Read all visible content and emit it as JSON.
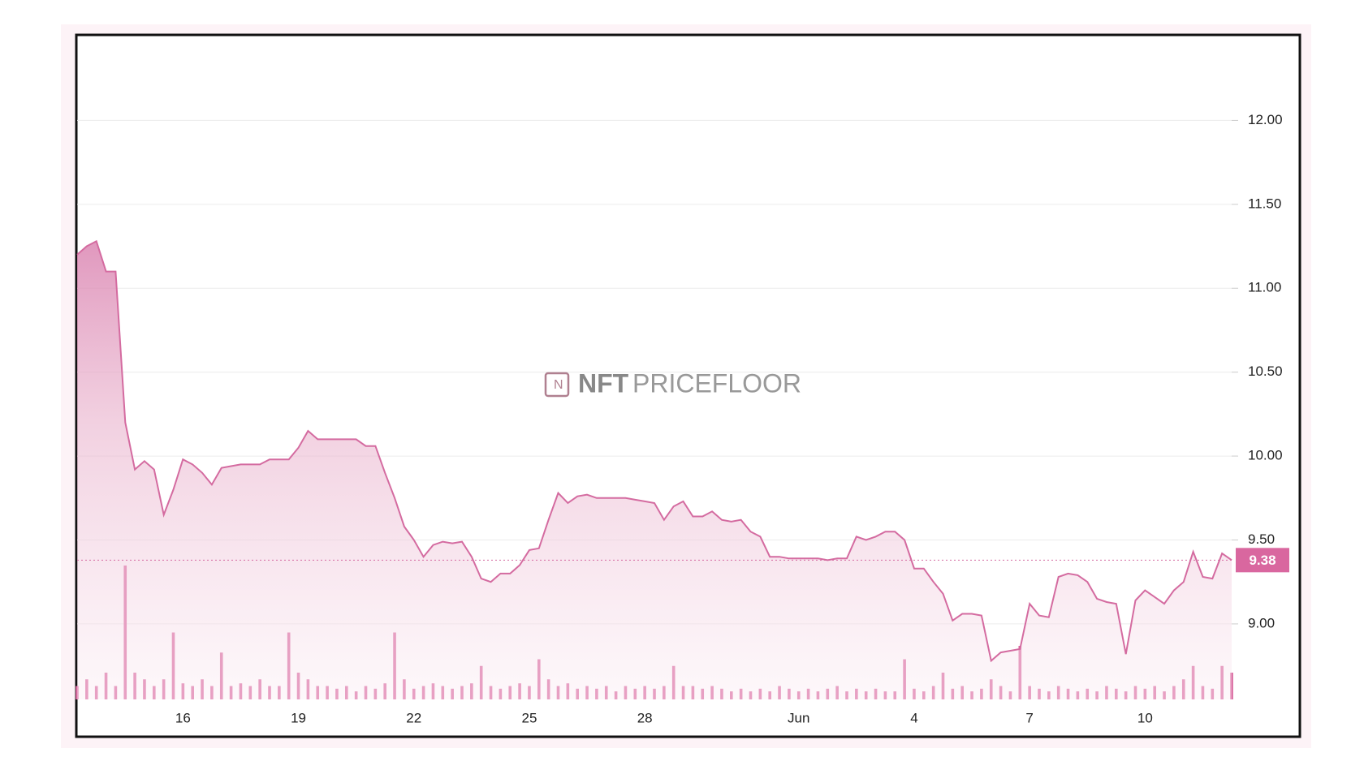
{
  "chart_data": {
    "type": "area",
    "categories": [
      null,
      null,
      null,
      null,
      null,
      null,
      null,
      null,
      null,
      null,
      null,
      "16",
      null,
      null,
      null,
      null,
      null,
      null,
      null,
      null,
      null,
      null,
      null,
      "19",
      null,
      null,
      null,
      null,
      null,
      null,
      null,
      null,
      null,
      null,
      null,
      "22",
      null,
      null,
      null,
      null,
      null,
      null,
      null,
      null,
      null,
      null,
      null,
      "25",
      null,
      null,
      null,
      null,
      null,
      null,
      null,
      null,
      null,
      null,
      null,
      "28",
      null,
      null,
      null,
      null,
      null,
      null,
      null,
      null,
      null,
      null,
      null,
      null,
      null,
      null,
      null,
      "Jun",
      null,
      null,
      null,
      null,
      null,
      null,
      null,
      null,
      null,
      null,
      null,
      "4",
      null,
      null,
      null,
      null,
      null,
      null,
      null,
      null,
      null,
      null,
      null,
      "7",
      null,
      null,
      null,
      null,
      null,
      null,
      null,
      null,
      null,
      null,
      null,
      "10",
      null,
      null,
      null,
      null,
      null,
      null,
      null,
      null,
      null
    ],
    "values": [
      11.2,
      11.25,
      11.28,
      11.1,
      11.1,
      10.2,
      9.92,
      9.97,
      9.92,
      9.65,
      9.8,
      9.98,
      9.95,
      9.9,
      9.83,
      9.93,
      9.94,
      9.95,
      9.95,
      9.95,
      9.98,
      9.98,
      9.98,
      10.05,
      10.15,
      10.1,
      10.1,
      10.1,
      10.1,
      10.1,
      10.06,
      10.06,
      9.9,
      9.75,
      9.58,
      9.5,
      9.4,
      9.47,
      9.49,
      9.48,
      9.49,
      9.4,
      9.27,
      9.25,
      9.3,
      9.3,
      9.35,
      9.44,
      9.45,
      9.62,
      9.78,
      9.72,
      9.76,
      9.77,
      9.75,
      9.75,
      9.75,
      9.75,
      9.74,
      9.73,
      9.72,
      9.62,
      9.7,
      9.73,
      9.64,
      9.64,
      9.67,
      9.62,
      9.61,
      9.62,
      9.55,
      9.52,
      9.4,
      9.4,
      9.39,
      9.39,
      9.39,
      9.39,
      9.38,
      9.39,
      9.39,
      9.52,
      9.5,
      9.52,
      9.55,
      9.55,
      9.5,
      9.33,
      9.33,
      9.25,
      9.18,
      9.02,
      9.06,
      9.06,
      9.05,
      8.78,
      8.83,
      8.84,
      8.85,
      9.12,
      9.05,
      9.04,
      9.28,
      9.3,
      9.29,
      9.25,
      9.15,
      9.13,
      9.12,
      8.82,
      9.14,
      9.2,
      9.16,
      9.12,
      9.2,
      9.25,
      9.43,
      9.28,
      9.27,
      9.42,
      9.38
    ],
    "color": "#d46ba0",
    "volume": {
      "color": "#d9679f",
      "values": [
        1,
        1.5,
        1,
        2,
        1,
        10,
        2,
        1.5,
        1,
        1.5,
        5,
        1.2,
        1,
        1.5,
        1,
        3.5,
        1,
        1.2,
        1,
        1.5,
        1,
        1,
        5,
        2,
        1.5,
        1,
        1,
        0.8,
        1,
        0.6,
        1,
        0.8,
        1.2,
        5,
        1.5,
        0.8,
        1,
        1.2,
        1,
        0.8,
        1,
        1.2,
        2.5,
        1,
        0.8,
        1,
        1.2,
        1,
        3,
        1.5,
        1,
        1.2,
        0.8,
        1,
        0.8,
        1,
        0.6,
        1,
        0.8,
        1,
        0.8,
        1,
        2.5,
        1,
        1,
        0.8,
        1,
        0.8,
        0.6,
        0.8,
        0.6,
        0.8,
        0.6,
        1,
        0.8,
        0.6,
        0.8,
        0.6,
        0.8,
        1,
        0.6,
        0.8,
        0.6,
        0.8,
        0.6,
        0.6,
        3,
        0.8,
        0.6,
        1,
        2,
        0.8,
        1,
        0.6,
        0.8,
        1.5,
        1,
        0.6,
        4,
        1,
        0.8,
        0.6,
        1,
        0.8,
        0.6,
        0.8,
        0.6,
        1,
        0.8,
        0.6,
        1,
        0.8,
        1,
        0.6,
        1,
        1.5,
        2.5,
        1,
        0.8,
        2.5,
        2
      ]
    },
    "ylim": [
      8.55,
      12.5
    ],
    "yticks": [
      {
        "value": 9,
        "label": "9.00"
      },
      {
        "value": 9.5,
        "label": "9.50"
      },
      {
        "value": 10,
        "label": "10.00"
      },
      {
        "value": 10.5,
        "label": "10.50"
      },
      {
        "value": 11,
        "label": "11.00"
      },
      {
        "value": 11.5,
        "label": "11.50"
      },
      {
        "value": 12,
        "label": "12.00"
      }
    ],
    "grid": true,
    "last_value": 9.38,
    "watermark": {
      "bold": "NFT",
      "light": "PRICEFLOOR"
    }
  }
}
